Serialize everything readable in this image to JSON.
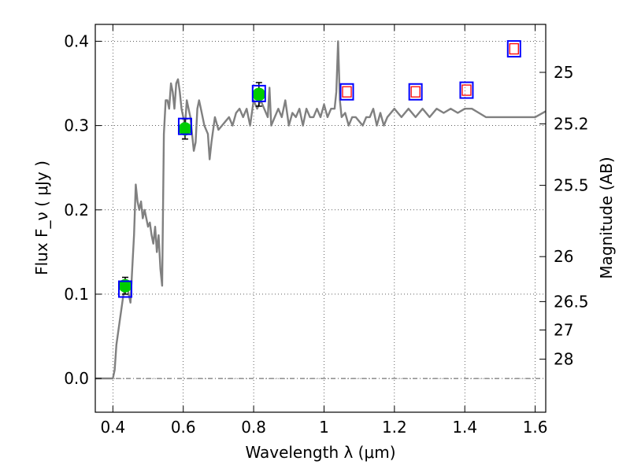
{
  "chart_data": {
    "type": "line",
    "xlabel": "Wavelength  λ (μm)",
    "ylabel": "Flux  F_ν  ( μJy )",
    "y2label": "Magnitude (AB)",
    "xlim": [
      0.35,
      1.63
    ],
    "ylim": [
      -0.04,
      0.42
    ],
    "x_ticks": [
      0.4,
      0.6,
      0.8,
      1.0,
      1.2,
      1.4,
      1.6
    ],
    "x_tick_labels": [
      "0.4",
      "0.6",
      "0.8",
      "1",
      "1.2",
      "1.4",
      "1.6"
    ],
    "y_ticks": [
      0.0,
      0.1,
      0.2,
      0.3,
      0.4
    ],
    "y_tick_labels": [
      "0.0",
      "0.1",
      "0.2",
      "0.3",
      "0.4"
    ],
    "mag_ticks": [
      25,
      25.2,
      25.5,
      26,
      26.5,
      27,
      28
    ],
    "mag_tick_labels": [
      "25",
      "25.2",
      "25.5",
      "26",
      "26.5",
      "27",
      "28"
    ],
    "grid": true,
    "colors": {
      "sed": "#808080",
      "observed": "#00cc00",
      "model_box": "#0000ff",
      "inner_box": "#ff0000",
      "zero_line": "#555555"
    },
    "series": [
      {
        "style": "line",
        "x": [
          0.35,
          0.4,
          0.405,
          0.41,
          0.42,
          0.43,
          0.44,
          0.45,
          0.455,
          0.46,
          0.465,
          0.47,
          0.475,
          0.48,
          0.485,
          0.49,
          0.495,
          0.5,
          0.505,
          0.51,
          0.515,
          0.52,
          0.525,
          0.53,
          0.535,
          0.54,
          0.545,
          0.55,
          0.555,
          0.56,
          0.565,
          0.57,
          0.575,
          0.58,
          0.585,
          0.59,
          0.595,
          0.6,
          0.605,
          0.61,
          0.62,
          0.625,
          0.63,
          0.635,
          0.64,
          0.645,
          0.65,
          0.66,
          0.67,
          0.675,
          0.68,
          0.69,
          0.7,
          0.71,
          0.72,
          0.73,
          0.74,
          0.75,
          0.76,
          0.77,
          0.78,
          0.79,
          0.8,
          0.81,
          0.82,
          0.83,
          0.84,
          0.845,
          0.85,
          0.86,
          0.87,
          0.88,
          0.89,
          0.9,
          0.91,
          0.92,
          0.93,
          0.94,
          0.95,
          0.96,
          0.97,
          0.98,
          0.99,
          1.0,
          1.01,
          1.02,
          1.03,
          1.035,
          1.04,
          1.045,
          1.05,
          1.06,
          1.07,
          1.08,
          1.09,
          1.1,
          1.11,
          1.12,
          1.13,
          1.14,
          1.15,
          1.16,
          1.17,
          1.18,
          1.2,
          1.22,
          1.24,
          1.26,
          1.28,
          1.3,
          1.32,
          1.34,
          1.36,
          1.38,
          1.4,
          1.42,
          1.44,
          1.46,
          1.48,
          1.5,
          1.52,
          1.54,
          1.56,
          1.58,
          1.6,
          1.63
        ],
        "y": [
          0.0,
          0.0,
          0.01,
          0.04,
          0.07,
          0.1,
          0.11,
          0.09,
          0.13,
          0.17,
          0.23,
          0.21,
          0.2,
          0.21,
          0.19,
          0.2,
          0.19,
          0.18,
          0.185,
          0.17,
          0.16,
          0.18,
          0.15,
          0.17,
          0.13,
          0.11,
          0.29,
          0.33,
          0.33,
          0.32,
          0.35,
          0.34,
          0.32,
          0.35,
          0.355,
          0.34,
          0.32,
          0.31,
          0.3,
          0.33,
          0.31,
          0.29,
          0.27,
          0.28,
          0.32,
          0.33,
          0.32,
          0.3,
          0.29,
          0.26,
          0.28,
          0.31,
          0.295,
          0.3,
          0.305,
          0.31,
          0.3,
          0.315,
          0.32,
          0.31,
          0.32,
          0.3,
          0.33,
          0.32,
          0.33,
          0.32,
          0.31,
          0.345,
          0.3,
          0.31,
          0.32,
          0.31,
          0.33,
          0.3,
          0.315,
          0.31,
          0.32,
          0.3,
          0.32,
          0.31,
          0.31,
          0.32,
          0.31,
          0.325,
          0.31,
          0.32,
          0.32,
          0.34,
          0.4,
          0.33,
          0.31,
          0.315,
          0.3,
          0.31,
          0.31,
          0.305,
          0.3,
          0.31,
          0.31,
          0.32,
          0.3,
          0.315,
          0.3,
          0.31,
          0.32,
          0.31,
          0.32,
          0.31,
          0.32,
          0.31,
          0.32,
          0.315,
          0.32,
          0.315,
          0.32,
          0.32,
          0.315,
          0.31,
          0.31,
          0.31,
          0.31,
          0.31,
          0.31,
          0.31,
          0.31,
          0.317
        ]
      },
      {
        "style": "circles-errorbars",
        "x": [
          0.435,
          0.605,
          0.815
        ],
        "y": [
          0.11,
          0.296,
          0.337
        ],
        "err": [
          0.01,
          0.012,
          0.014
        ]
      },
      {
        "style": "squares",
        "x": [
          0.435,
          0.605,
          0.815,
          1.065,
          1.26,
          1.405,
          1.54
        ],
        "y": [
          0.106,
          0.299,
          0.338,
          0.34,
          0.34,
          0.342,
          0.391
        ]
      },
      {
        "style": "inner-squares",
        "x": [
          1.065,
          1.26,
          1.405,
          1.54
        ],
        "y": [
          0.34,
          0.34,
          0.342,
          0.391
        ]
      }
    ]
  }
}
